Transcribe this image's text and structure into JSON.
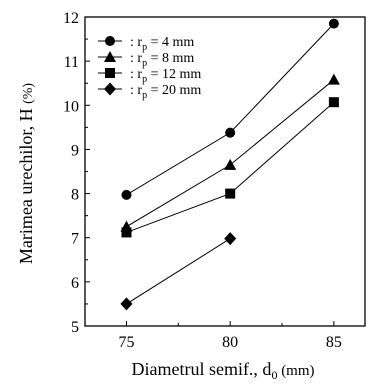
{
  "chart_data": {
    "type": "line",
    "xlabel": {
      "main": "Diametrul semif., d",
      "sub": "0",
      "unit": " (mm)"
    },
    "ylabel": "Marimea urechilor, H",
    "ylabel_unit": "(%)",
    "xlim": [
      73,
      86.5
    ],
    "ylim": [
      5,
      12
    ],
    "xticks": [
      75,
      80,
      85
    ],
    "yticks": [
      5,
      6,
      7,
      8,
      9,
      10,
      11,
      12
    ],
    "grid": false,
    "legend_position": "top-left",
    "series": [
      {
        "name": ":  r",
        "sub": "p",
        "suffix": " =   4 mm",
        "marker": "circle",
        "x": [
          75,
          80,
          85
        ],
        "y": [
          7.97,
          9.38,
          11.85
        ]
      },
      {
        "name": ":  r",
        "sub": "p",
        "suffix": " =   8 mm",
        "marker": "triangle",
        "x": [
          75,
          80,
          85
        ],
        "y": [
          7.25,
          8.65,
          10.58
        ]
      },
      {
        "name": ":  r",
        "sub": "p",
        "suffix": " = 12 mm",
        "marker": "square",
        "x": [
          75,
          80,
          85
        ],
        "y": [
          7.12,
          8.0,
          10.07
        ]
      },
      {
        "name": ":  r",
        "sub": "p",
        "suffix": " = 20 mm",
        "marker": "diamond",
        "x": [
          80,
          75
        ],
        "y": [
          6.98,
          5.5
        ]
      }
    ]
  }
}
